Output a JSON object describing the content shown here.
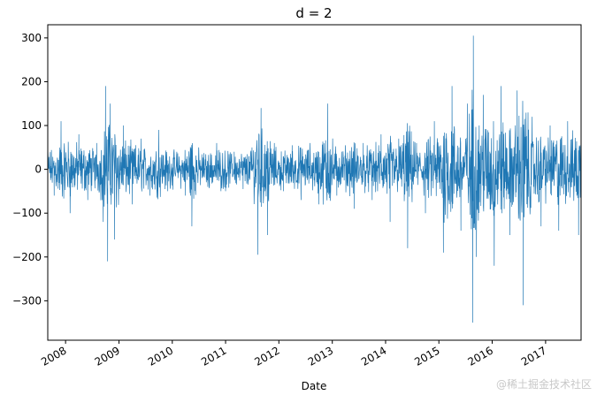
{
  "chart_data": {
    "type": "line",
    "title": "d = 2",
    "xlabel": "Date",
    "ylabel": "",
    "xlim": [
      "2007-09-01",
      "2017-09-01"
    ],
    "ylim": [
      -390,
      330
    ],
    "yticks": [
      -300,
      -200,
      -100,
      0,
      100,
      200,
      300
    ],
    "yticklabels": [
      "−300",
      "−200",
      "−100",
      "0",
      "100",
      "200",
      "300"
    ],
    "xticks": [
      "2008-01-01",
      "2009-01-01",
      "2010-01-01",
      "2011-01-01",
      "2012-01-01",
      "2013-01-01",
      "2014-01-01",
      "2015-01-01",
      "2016-01-01",
      "2017-01-01"
    ],
    "xticklabels": [
      "2008",
      "2009",
      "2010",
      "2011",
      "2012",
      "2013",
      "2014",
      "2015",
      "2016",
      "2017"
    ],
    "grid": false,
    "line_color": "#1f77b4",
    "series": [
      {
        "x": [
          "2007-09-01",
          "2007-10-15",
          "2007-12-01",
          "2008-02-01",
          "2008-04-01",
          "2008-06-01",
          "2008-08-01",
          "2008-09-15",
          "2008-10-01",
          "2008-10-15",
          "2008-11-01",
          "2008-12-01",
          "2009-02-01",
          "2009-04-01",
          "2009-06-01",
          "2009-08-01",
          "2009-10-01",
          "2009-12-01",
          "2010-02-01",
          "2010-04-01",
          "2010-05-15",
          "2010-07-01",
          "2010-09-01",
          "2010-11-01",
          "2011-01-01",
          "2011-03-01",
          "2011-05-01",
          "2011-07-01",
          "2011-08-10",
          "2011-09-01",
          "2011-10-15",
          "2011-12-01",
          "2012-02-01",
          "2012-04-01",
          "2012-06-01",
          "2012-08-01",
          "2012-10-01",
          "2012-12-01",
          "2013-02-01",
          "2013-04-01",
          "2013-06-01",
          "2013-08-01",
          "2013-10-01",
          "2013-12-01",
          "2014-02-01",
          "2014-04-01",
          "2014-06-01",
          "2014-08-01",
          "2014-10-01",
          "2014-12-01",
          "2015-02-01",
          "2015-04-01",
          "2015-06-01",
          "2015-07-15",
          "2015-08-20",
          "2015-08-25",
          "2015-09-15",
          "2015-11-01",
          "2016-01-15",
          "2016-03-01",
          "2016-05-01",
          "2016-06-20",
          "2016-08-01",
          "2016-10-01",
          "2016-12-01",
          "2017-02-01",
          "2017-04-01",
          "2017-06-01",
          "2017-08-15"
        ],
        "values": [
          50,
          -60,
          110,
          -100,
          80,
          -70,
          60,
          -120,
          190,
          -210,
          150,
          -160,
          100,
          -80,
          70,
          -60,
          90,
          -50,
          40,
          -60,
          -130,
          50,
          -40,
          60,
          -50,
          40,
          -45,
          50,
          -195,
          140,
          -150,
          60,
          -50,
          55,
          -70,
          60,
          -80,
          150,
          -60,
          55,
          -90,
          60,
          -70,
          80,
          -120,
          70,
          -180,
          60,
          -100,
          110,
          -190,
          190,
          -140,
          150,
          -350,
          305,
          -200,
          170,
          -220,
          190,
          -150,
          180,
          -310,
          120,
          -130,
          100,
          -140,
          110,
          -150
        ]
      }
    ]
  },
  "watermark": "@稀土掘金技术社区"
}
